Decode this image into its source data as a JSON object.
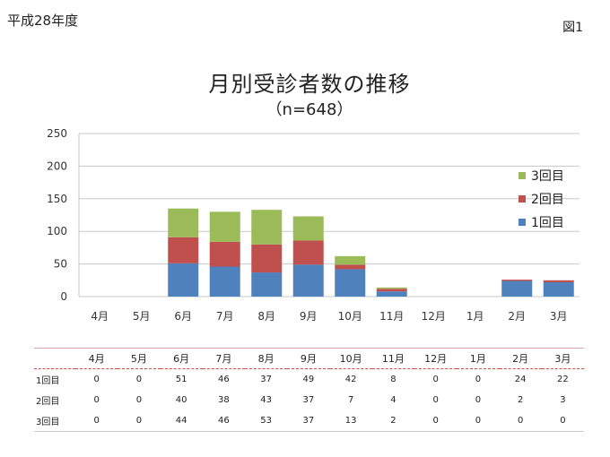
{
  "header": {
    "year": "平成28年度",
    "figure": "図1"
  },
  "chart_data": {
    "type": "bar",
    "stacked": true,
    "title": "月別受診者数の推移",
    "subtitle": "（n=648）",
    "categories": [
      "4月",
      "5月",
      "6月",
      "7月",
      "8月",
      "9月",
      "10月",
      "11月",
      "12月",
      "1月",
      "2月",
      "3月"
    ],
    "series": [
      {
        "name": "1回目",
        "color": "#4f81bd",
        "values": [
          0,
          0,
          51,
          46,
          37,
          49,
          42,
          8,
          0,
          0,
          24,
          22
        ]
      },
      {
        "name": "2回目",
        "color": "#c0504d",
        "values": [
          0,
          0,
          40,
          38,
          43,
          37,
          7,
          4,
          0,
          0,
          2,
          3
        ]
      },
      {
        "name": "3回目",
        "color": "#9bbb59",
        "values": [
          0,
          0,
          44,
          46,
          53,
          37,
          13,
          2,
          0,
          0,
          0,
          0
        ]
      }
    ],
    "ylim": [
      0,
      250
    ],
    "yticks": [
      0,
      50,
      100,
      150,
      200,
      250
    ],
    "grid": true,
    "legend_position": "right",
    "xlabel": "",
    "ylabel": ""
  }
}
